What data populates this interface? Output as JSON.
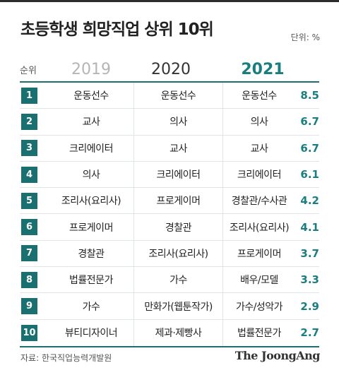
{
  "title": "초등학생 희망직업 상위 10위",
  "unit_label": "단위: %",
  "chart_data": {
    "type": "table",
    "title": "초등학생 희망직업 상위 10위",
    "unit": "%",
    "columns": {
      "rank": "순위",
      "y2019": "2019",
      "y2020": "2020",
      "y2021": "2021"
    },
    "rows": [
      {
        "rank": "1",
        "y2019": "운동선수",
        "y2020": "운동선수",
        "y2021": "운동선수",
        "value": "8.5"
      },
      {
        "rank": "2",
        "y2019": "교사",
        "y2020": "의사",
        "y2021": "의사",
        "value": "6.7"
      },
      {
        "rank": "3",
        "y2019": "크리에이터",
        "y2020": "교사",
        "y2021": "교사",
        "value": "6.7"
      },
      {
        "rank": "4",
        "y2019": "의사",
        "y2020": "크리에이터",
        "y2021": "크리에이터",
        "value": "6.1"
      },
      {
        "rank": "5",
        "y2019": "조리사(요리사)",
        "y2020": "프로게이머",
        "y2021": "경찰관/수사관",
        "value": "4.2"
      },
      {
        "rank": "6",
        "y2019": "프로게이머",
        "y2020": "경찰관",
        "y2021": "조리사(요리사)",
        "value": "4.1"
      },
      {
        "rank": "7",
        "y2019": "경찰관",
        "y2020": "조리사(요리사)",
        "y2021": "프로게이머",
        "value": "3.7"
      },
      {
        "rank": "8",
        "y2019": "법률전문가",
        "y2020": "가수",
        "y2021": "배우/모델",
        "value": "3.3"
      },
      {
        "rank": "9",
        "y2019": "가수",
        "y2020": "만화가(웹툰작가)",
        "y2021": "가수/성악가",
        "value": "2.9"
      },
      {
        "rank": "10",
        "y2019": "뷰티디자이너",
        "y2020": "제과·제빵사",
        "y2021": "법률전문가",
        "value": "2.7"
      }
    ]
  },
  "source": "자료: 한국직업능력개발원",
  "brand": "The JoongAng",
  "colors": {
    "accent": "#1a7070",
    "accent_text": "#1a7e7e",
    "muted_year": "#b5b5b5"
  }
}
